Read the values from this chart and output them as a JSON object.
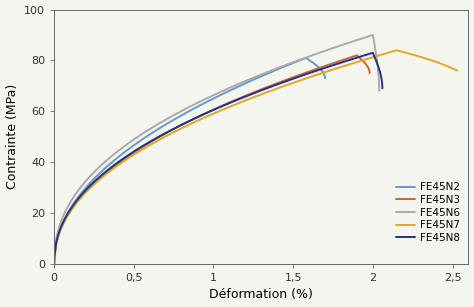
{
  "title": "",
  "xlabel": "Déformation (%)",
  "ylabel": "Contrainte (MPa)",
  "xlim": [
    0,
    2.6
  ],
  "ylim": [
    0,
    100
  ],
  "xticks": [
    0,
    0.5,
    1.0,
    1.5,
    2.0,
    2.5
  ],
  "yticks": [
    0,
    20,
    40,
    60,
    80,
    100
  ],
  "xtick_labels": [
    "0",
    "0,5",
    "1",
    "1,5",
    "2",
    "2,5"
  ],
  "legend_labels": [
    "FE45N2",
    "FE45N3",
    "FE45N6",
    "FE45N7",
    "FE45N8"
  ],
  "colors": {
    "FE45N2": "#6699cc",
    "FE45N3": "#cc6633",
    "FE45N6": "#aaaaaa",
    "FE45N7": "#ddaa22",
    "FE45N8": "#223388"
  },
  "background_color": "#f5f5f0"
}
